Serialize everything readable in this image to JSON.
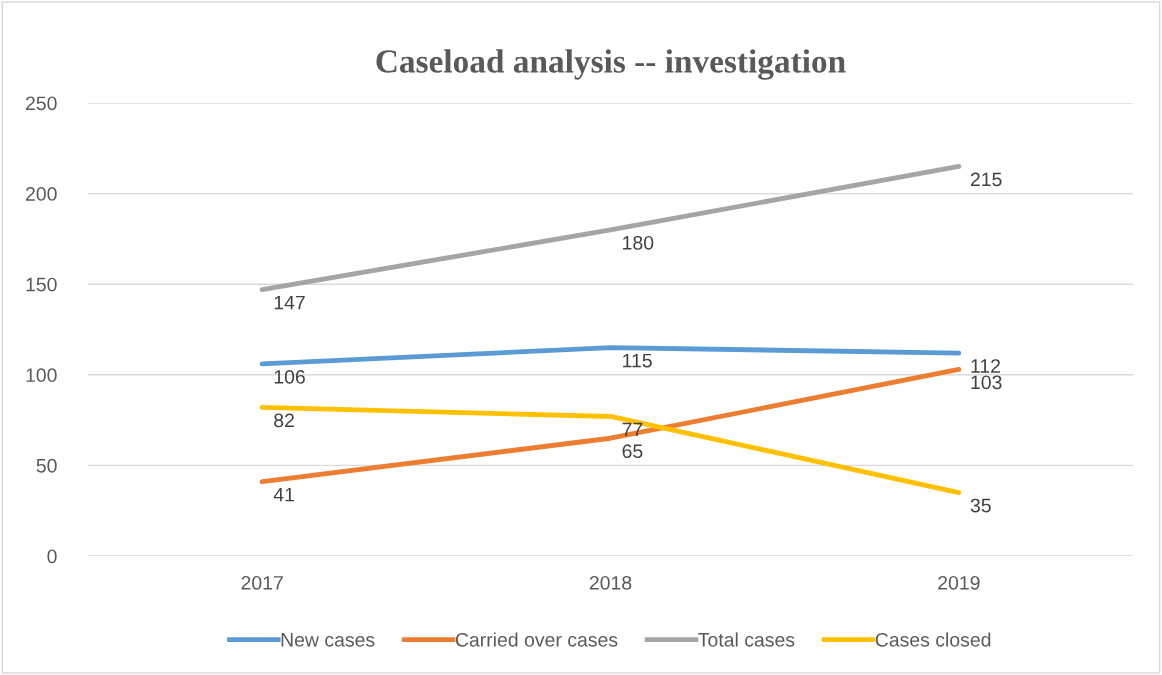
{
  "chart_data": {
    "type": "line",
    "title": "Caseload analysis -- investigation",
    "categories": [
      "2017",
      "2018",
      "2019"
    ],
    "series": [
      {
        "name": "New cases",
        "color": "#5b9bd5",
        "values": [
          106,
          115,
          112
        ]
      },
      {
        "name": "Carried over cases",
        "color": "#ed7d31",
        "values": [
          41,
          65,
          103
        ]
      },
      {
        "name": "Total cases",
        "color": "#a5a5a5",
        "values": [
          147,
          180,
          215
        ]
      },
      {
        "name": "Cases closed",
        "color": "#ffc000",
        "values": [
          82,
          77,
          35
        ]
      }
    ],
    "ylim": [
      0,
      250
    ],
    "yticks": [
      0,
      50,
      100,
      150,
      200,
      250
    ],
    "grid": "y",
    "legend": "bottom",
    "data_labels": true,
    "marker": "none",
    "line_style": "solid"
  }
}
